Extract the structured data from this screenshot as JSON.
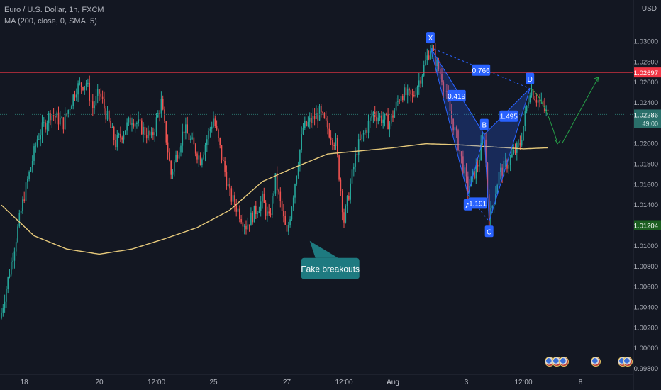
{
  "legend": {
    "symbol_line": "Euro / U.S. Dollar, 1h, FXCM",
    "indicator_line": "MA (200, close, 0, SMA, 5)"
  },
  "price_scale": {
    "currency": "USD",
    "ticks": [
      "1.03000",
      "1.02800",
      "1.02600",
      "1.02400",
      "1.02200",
      "1.02000",
      "1.01800",
      "1.01600",
      "1.01400",
      "1.01200",
      "1.01000",
      "1.00800",
      "1.00600",
      "1.00400",
      "1.00200",
      "1.00000",
      "0.99800"
    ],
    "tick_values": [
      1.03,
      1.028,
      1.026,
      1.024,
      1.022,
      1.02,
      1.018,
      1.016,
      1.014,
      1.012,
      1.01,
      1.008,
      1.006,
      1.004,
      1.002,
      1.0,
      0.998
    ],
    "labels": [
      {
        "text": "1.02697",
        "value": 1.02697,
        "color": "#f23645"
      },
      {
        "text": "1.02286",
        "value": 1.02286,
        "color": "#2a6f6a",
        "countdown": "49:00"
      },
      {
        "text": "1.01204",
        "value": 1.01204,
        "color": "#1b5e20"
      }
    ]
  },
  "time_scale": {
    "labels": [
      "18",
      "20",
      "12:00",
      "25",
      "27",
      "12:00",
      "Aug",
      "3",
      "12:00",
      "8"
    ],
    "label_index": [
      14,
      60,
      95,
      130,
      175,
      210,
      240,
      285,
      320,
      355
    ]
  },
  "annotations": {
    "fake_breakouts": "Fake breakouts"
  },
  "harmonic": {
    "points": [
      {
        "label": "X",
        "bar": 263,
        "price": 1.0294
      },
      {
        "label": "A",
        "bar": 286,
        "price": 1.015
      },
      {
        "label": "B",
        "bar": 296,
        "price": 1.0209
      },
      {
        "label": "C",
        "bar": 299,
        "price": 1.0124
      },
      {
        "label": "D",
        "bar": 324,
        "price": 1.0254
      }
    ],
    "ratios": [
      {
        "text": "0.766",
        "bar": 294,
        "price": 1.0272
      },
      {
        "text": "0.419",
        "bar": 279,
        "price": 1.0247
      },
      {
        "text": "1.495",
        "bar": 311,
        "price": 1.0227
      },
      {
        "text": "1.191",
        "bar": 292,
        "price": 1.0142
      }
    ]
  },
  "colors": {
    "background": "#131722",
    "up": "#26a69a",
    "down": "#ef5350",
    "ma": "#e6c97b",
    "resistance": "#f23645",
    "support": "#2e7d32",
    "harmonic": "#2962ff",
    "projection": "#26a148",
    "callout": "#1e7a80"
  },
  "chart_data": {
    "type": "candlestick",
    "title": "Euro / U.S. Dollar, 1h, FXCM",
    "indicator": "MA (200, close, 0, SMA, 5)",
    "ylim": [
      0.998,
      1.031
    ],
    "y_unit": "USD",
    "grid": false,
    "price_path": {
      "bars": [
        0,
        8,
        14,
        22,
        30,
        38,
        46,
        52,
        56,
        60,
        70,
        80,
        92,
        98,
        104,
        112,
        122,
        130,
        140,
        150,
        160,
        164,
        168,
        175,
        185,
        195,
        205,
        210,
        218,
        228,
        238,
        245,
        252,
        258,
        263,
        270,
        276,
        280,
        286,
        292,
        296,
        299,
        305,
        312,
        318,
        324,
        330,
        335
      ],
      "close": [
        1.0035,
        1.01,
        1.015,
        1.0205,
        1.023,
        1.022,
        1.0255,
        1.026,
        1.0235,
        1.025,
        1.02,
        1.0225,
        1.0205,
        1.024,
        1.017,
        1.0215,
        1.0185,
        1.0225,
        1.015,
        1.012,
        1.0145,
        1.0125,
        1.0165,
        1.011,
        1.0215,
        1.023,
        1.02,
        1.0125,
        1.0195,
        1.023,
        1.022,
        1.025,
        1.0245,
        1.027,
        1.0294,
        1.0265,
        1.0225,
        1.02,
        1.0155,
        1.018,
        1.0209,
        1.0124,
        1.017,
        1.0185,
        1.02,
        1.0254,
        1.024,
        1.0228
      ]
    },
    "moving_average": {
      "bars": [
        0,
        20,
        40,
        60,
        80,
        100,
        120,
        140,
        160,
        180,
        200,
        220,
        240,
        260,
        280,
        300,
        320,
        335
      ],
      "values": [
        1.014,
        1.011,
        1.0097,
        1.0092,
        1.0097,
        1.0107,
        1.0118,
        1.0135,
        1.0163,
        1.0177,
        1.019,
        1.0193,
        1.0196,
        1.02,
        1.0199,
        1.0197,
        1.0195,
        1.0196
      ]
    },
    "levels": [
      {
        "name": "resistance",
        "value": 1.02697
      },
      {
        "name": "current",
        "value": 1.02286
      },
      {
        "name": "support",
        "value": 1.01204
      }
    ],
    "projection": [
      {
        "bar": 324,
        "price": 1.0254
      },
      {
        "bar": 341,
        "price": 1.02
      },
      {
        "bar": 366,
        "price": 1.0265
      }
    ]
  }
}
